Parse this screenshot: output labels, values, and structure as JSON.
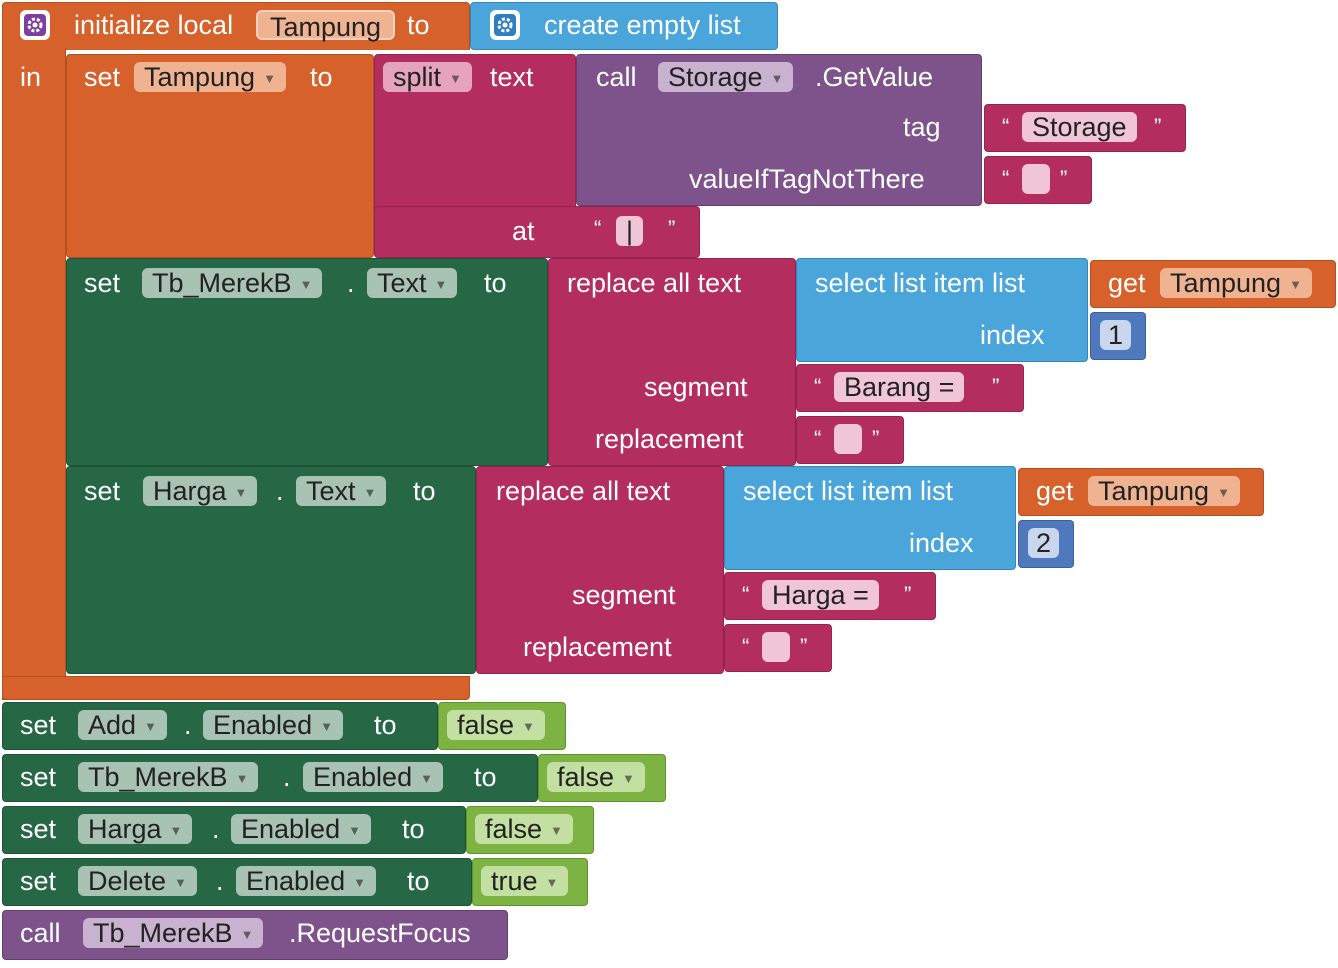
{
  "init": {
    "kw": "initialize local",
    "var": "Tampung",
    "to": "to",
    "in": "in",
    "create_list": "create empty list"
  },
  "set1": {
    "kw": "set",
    "var": "Tampung",
    "to": "to"
  },
  "split": {
    "kw": "split",
    "text": "text",
    "at": "at",
    "sep": "|"
  },
  "call1": {
    "kw": "call",
    "comp": "Storage",
    "method": ".GetValue",
    "tag_label": "tag",
    "tag_value": "Storage",
    "default_label": "valueIfTagNotThere",
    "default_value": ""
  },
  "set2": {
    "kw": "set",
    "comp": "Tb_MerekB",
    "dot": ".",
    "prop": "Text",
    "to": "to",
    "replace": "replace all text",
    "segment": "segment",
    "replacement": "replacement",
    "select": "select list item  list",
    "index": "index",
    "index_value": "1",
    "get": "get",
    "get_var": "Tampung",
    "seg_value": "Barang =",
    "rep_value": ""
  },
  "set3": {
    "kw": "set",
    "comp": "Harga",
    "dot": ".",
    "prop": "Text",
    "to": "to",
    "replace": "replace all text",
    "segment": "segment",
    "replacement": "replacement",
    "select": "select list item  list",
    "index": "index",
    "index_value": "2",
    "get": "get",
    "get_var": "Tampung",
    "seg_value": "Harga =",
    "rep_value": ""
  },
  "row1": {
    "kw": "set",
    "comp": "Add",
    "dot": ".",
    "prop": "Enabled",
    "to": "to",
    "val": "false"
  },
  "row2": {
    "kw": "set",
    "comp": "Tb_MerekB",
    "dot": ".",
    "prop": "Enabled",
    "to": "to",
    "val": "false"
  },
  "row3": {
    "kw": "set",
    "comp": "Harga",
    "dot": ".",
    "prop": "Enabled",
    "to": "to",
    "val": "false"
  },
  "row4": {
    "kw": "set",
    "comp": "Delete",
    "dot": ".",
    "prop": "Enabled",
    "to": "to",
    "val": "true"
  },
  "row5": {
    "kw": "call",
    "comp": "Tb_MerekB",
    "method": ".RequestFocus"
  },
  "icons": {
    "mutator": "gear-icon",
    "dropdown": "triangle-down-icon"
  },
  "colors": {
    "local_var": "#d6612b",
    "text": "#b32d5e",
    "component_method": "#7e538b",
    "list": "#4aa6da",
    "component_set": "#266745",
    "logic": "#7cb342",
    "math": "#4f79bc"
  }
}
